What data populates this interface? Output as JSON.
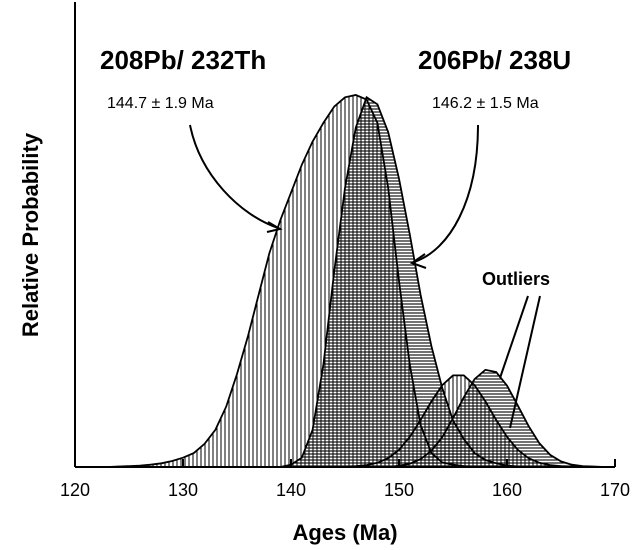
{
  "chart_data": {
    "type": "area",
    "xlabel": "Ages (Ma)",
    "ylabel": "Relative Probability",
    "x": [
      120,
      121,
      122,
      123,
      124,
      125,
      126,
      127,
      128,
      129,
      130,
      131,
      132,
      133,
      134,
      135,
      136,
      137,
      138,
      139,
      140,
      141,
      142,
      143,
      144,
      145,
      146,
      147,
      148,
      149,
      150,
      151,
      152,
      153,
      154,
      155,
      156,
      157,
      158,
      159,
      160,
      161,
      162,
      163,
      164,
      165,
      166,
      167,
      168,
      169,
      170
    ],
    "series": [
      {
        "name": "208Pb/ 232Th",
        "color": "#000000",
        "fill_pattern": "vertical",
        "values": [
          0,
          0,
          0,
          0,
          0.1,
          0.2,
          0.3,
          0.5,
          0.8,
          1.3,
          2,
          3,
          5,
          8,
          13,
          20,
          28,
          37,
          46,
          53,
          59,
          65,
          70,
          74,
          77.5,
          79.5,
          80,
          79,
          74,
          60,
          40,
          22,
          9,
          3,
          1,
          0.5,
          0.2,
          0.1,
          0,
          0,
          0,
          0,
          0,
          0,
          0,
          0,
          0,
          0,
          0,
          0,
          0
        ]
      },
      {
        "name": "206Pb/ 238U",
        "color": "#000000",
        "fill_pattern": "horizontal",
        "values": [
          0,
          0,
          0,
          0,
          0,
          0,
          0,
          0,
          0,
          0,
          0,
          0,
          0,
          0,
          0,
          0,
          0,
          0,
          0,
          0,
          0.5,
          2,
          8,
          22,
          42,
          60,
          73,
          79.5,
          78,
          72,
          62,
          50,
          37,
          26,
          17,
          10,
          6,
          3,
          1.5,
          0.8,
          0.3,
          0.1,
          0,
          0,
          0,
          0,
          0,
          0,
          0,
          0,
          0
        ]
      },
      {
        "color": "#000000",
        "fill_pattern": "vertical",
        "values": [
          0,
          0,
          0,
          0,
          0,
          0,
          0,
          0,
          0,
          0,
          0,
          0,
          0,
          0,
          0,
          0,
          0,
          0,
          0,
          0,
          0,
          0,
          0,
          0,
          0,
          0.1,
          0.2,
          0.4,
          0.9,
          1.9,
          3.7,
          6.5,
          10.1,
          14.1,
          17.6,
          19.7,
          19.7,
          17.6,
          14.1,
          10.1,
          6.5,
          3.7,
          1.9,
          0.9,
          0.4,
          0.2,
          0.1,
          0,
          0,
          0,
          0
        ]
      },
      {
        "color": "#000000",
        "fill_pattern": "horizontal",
        "values": [
          0,
          0,
          0,
          0,
          0,
          0,
          0,
          0,
          0,
          0,
          0,
          0,
          0,
          0,
          0,
          0,
          0,
          0,
          0,
          0,
          0,
          0,
          0,
          0,
          0,
          0,
          0,
          0,
          0,
          0,
          0.26,
          0.7,
          1.7,
          3.5,
          6.4,
          10.5,
          15,
          18.9,
          20.9,
          20.4,
          17.5,
          13.2,
          8.8,
          5.1,
          2.6,
          1.2,
          0.5,
          0.2,
          0.1,
          0,
          0
        ]
      }
    ],
    "annotations": [
      "144.7 ± 1.9 Ma",
      "146.2 ± 1.5 Ma",
      "Outliers"
    ],
    "xlim": [
      120,
      170
    ],
    "xticks": [
      120,
      130,
      140,
      150,
      160,
      170
    ],
    "ylim": [
      0,
      100
    ],
    "grid": false
  }
}
